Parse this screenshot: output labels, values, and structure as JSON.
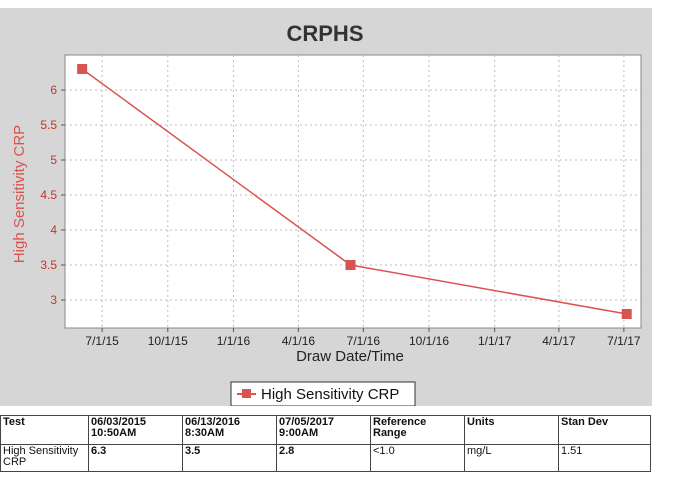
{
  "chart_data": {
    "type": "line",
    "title": "CRPHS",
    "xlabel": "Draw Date/Time",
    "ylabel": "High Sensitivity CRP",
    "x_ticks": [
      "7/1/15",
      "10/1/15",
      "1/1/16",
      "4/1/16",
      "7/1/16",
      "10/1/16",
      "1/1/17",
      "4/1/17",
      "7/1/17"
    ],
    "y_ticks": [
      "3",
      "3.5",
      "4",
      "4.5",
      "5",
      "5.5",
      "6"
    ],
    "ylim": [
      2.6,
      6.5
    ],
    "xlim": [
      "2015-05-10",
      "2017-07-25"
    ],
    "grid": true,
    "legend_position": "bottom-center",
    "series": [
      {
        "name": "High Sensitivity CRP",
        "color": "#d9534f",
        "marker": "square",
        "points": [
          {
            "x": "2015-06-03",
            "y": 6.3
          },
          {
            "x": "2016-06-13",
            "y": 3.5
          },
          {
            "x": "2017-07-05",
            "y": 2.8
          }
        ]
      }
    ]
  },
  "table": {
    "headers": [
      "Test",
      "06/03/2015\n10:50AM",
      "06/13/2016\n8:30AM",
      "07/05/2017\n9:00AM",
      "Reference\nRange",
      "Units",
      "Stan Dev"
    ],
    "rows": [
      [
        "High Sensitivity\nCRP",
        "6.3",
        "3.5",
        "2.8",
        "<1.0",
        "mg/L",
        "1.51"
      ]
    ]
  }
}
